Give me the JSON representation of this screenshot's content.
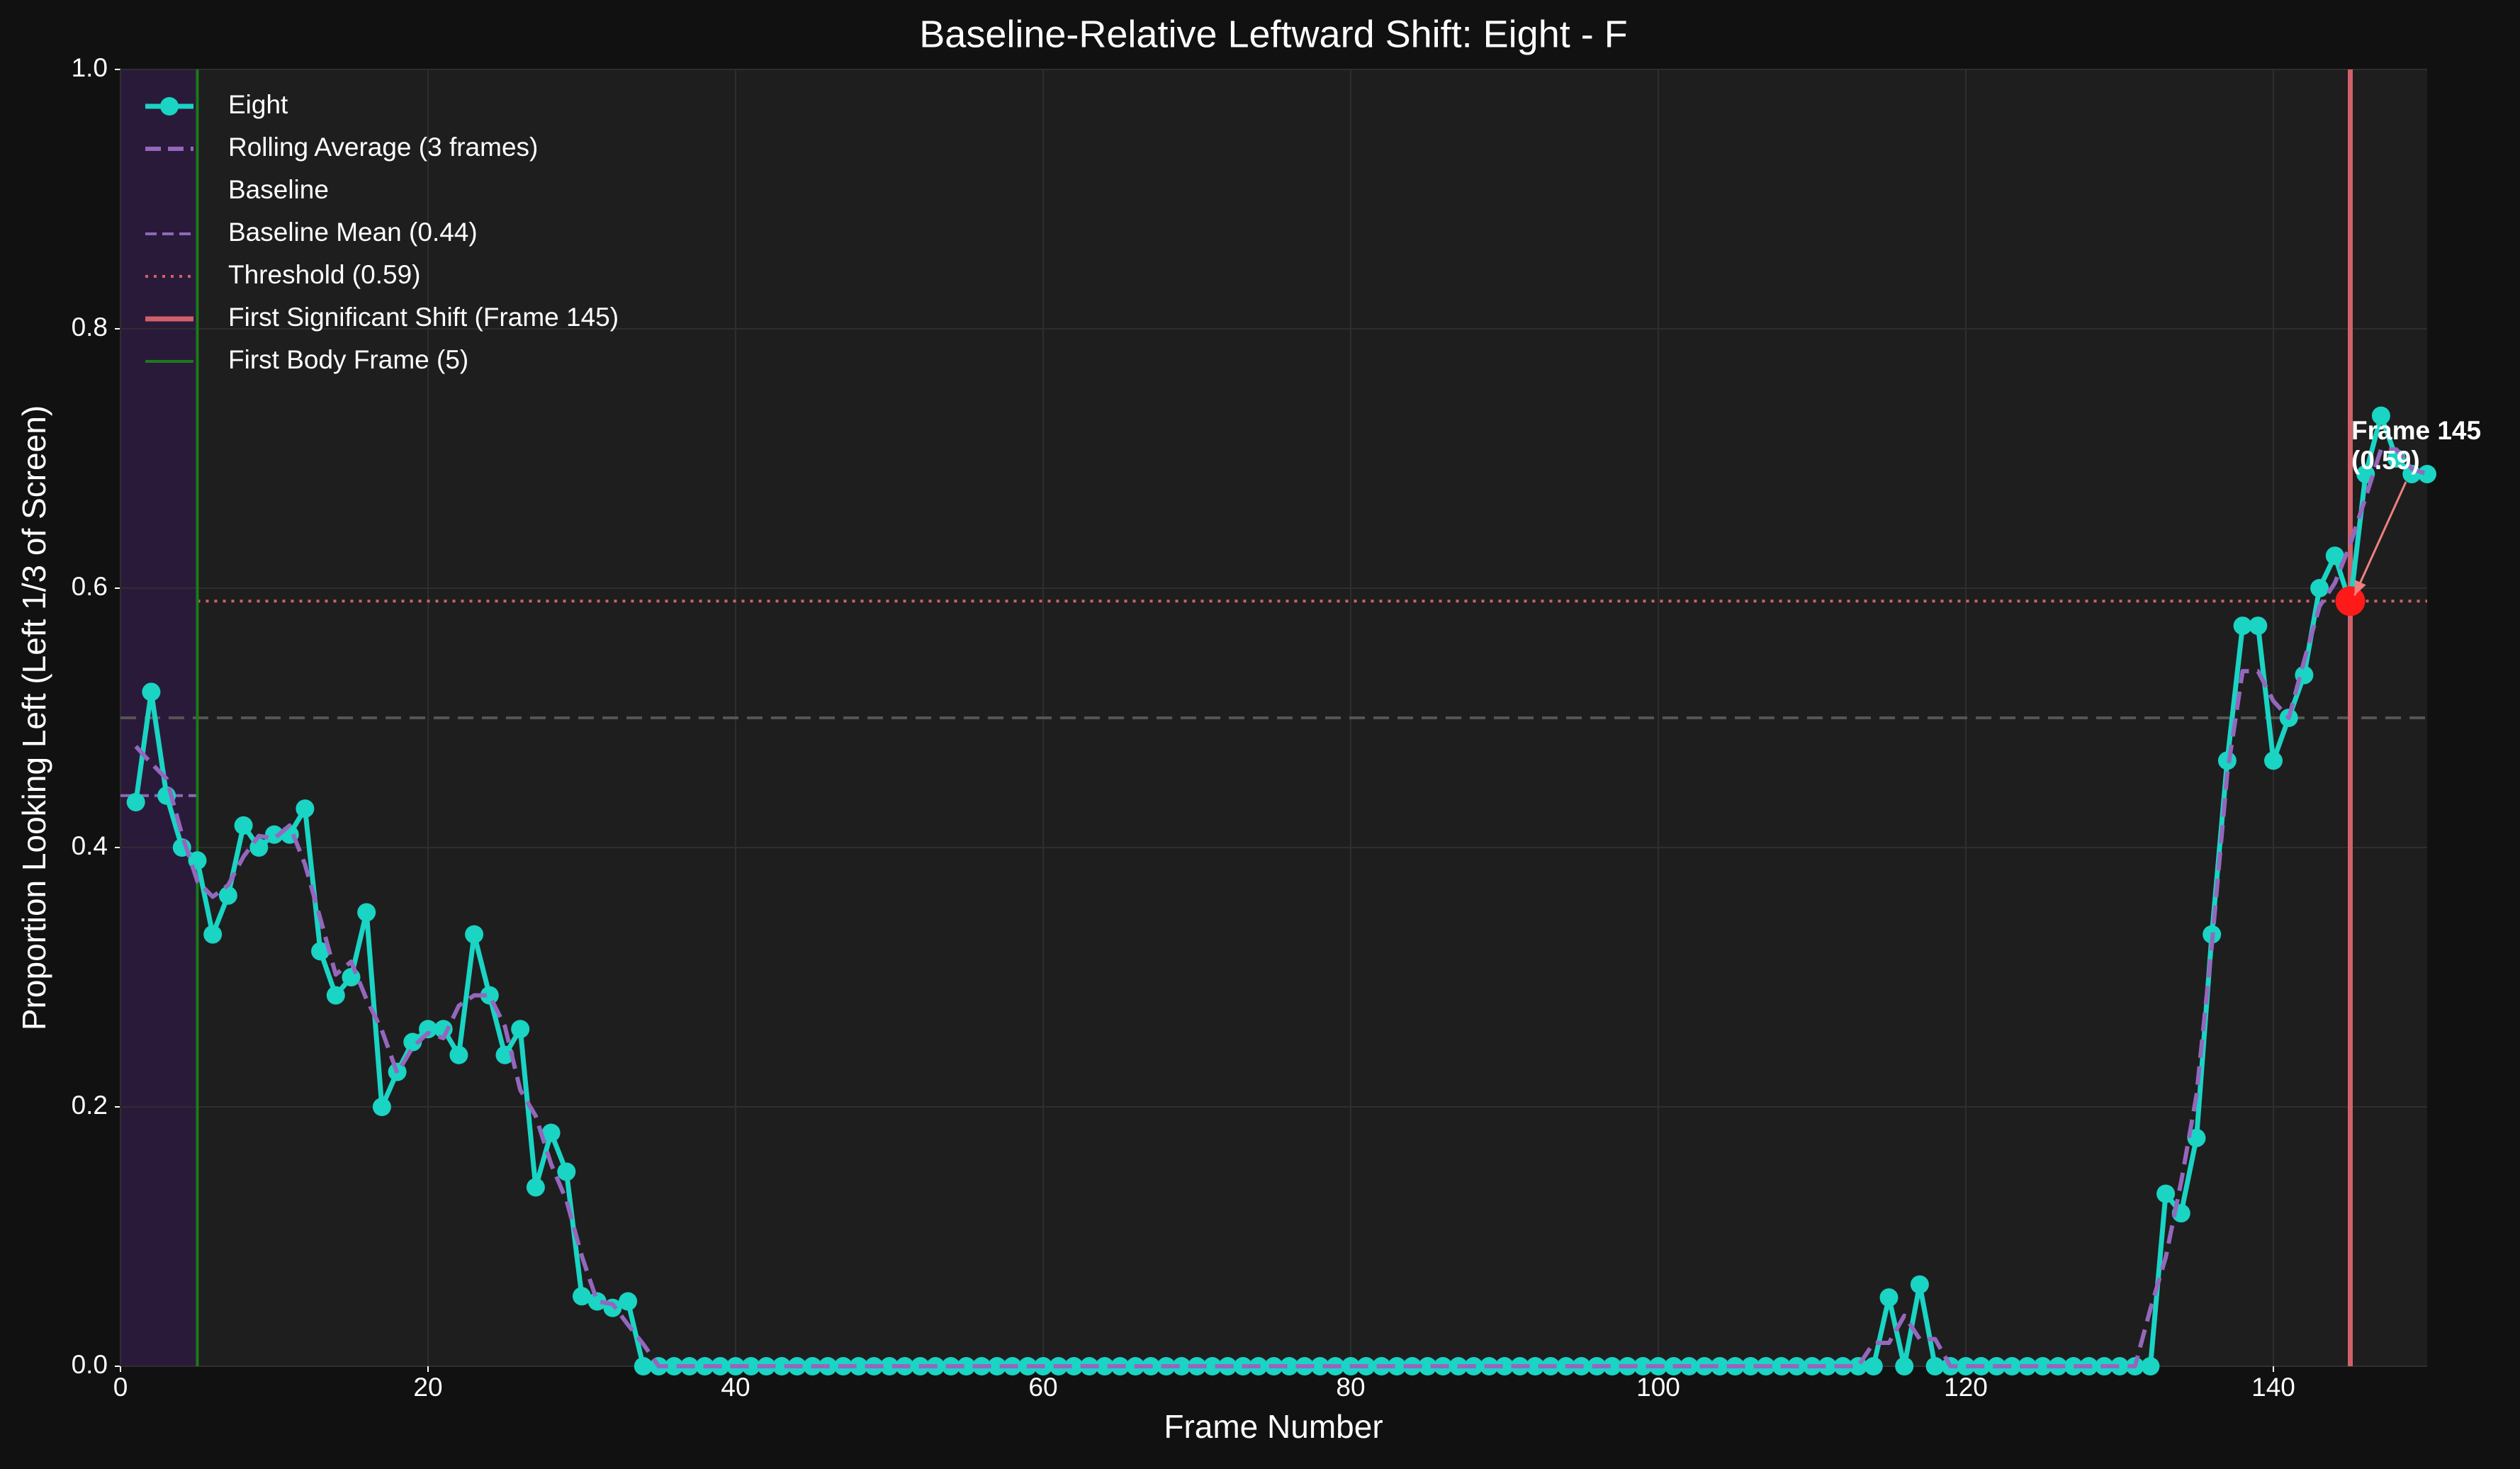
{
  "chart_data": {
    "type": "line",
    "title": "Baseline-Relative Leftward Shift: Eight - F",
    "xlabel": "Frame Number",
    "ylabel": "Proportion Looking Left (Left 1/3 of Screen)",
    "xlim": [
      0,
      150
    ],
    "ylim": [
      0,
      1
    ],
    "xticks": [
      0,
      20,
      40,
      60,
      80,
      100,
      120,
      140
    ],
    "yticks": [
      {
        "value": 0,
        "label": "0.0"
      },
      {
        "value": 0.2,
        "label": "0.2"
      },
      {
        "value": 0.4,
        "label": "0.4"
      },
      {
        "value": 0.6,
        "label": "0.6"
      },
      {
        "value": 0.8,
        "label": "0.8"
      },
      {
        "value": 1,
        "label": "1.0"
      }
    ],
    "grid": true,
    "legend": "upper left",
    "x": [
      1,
      2,
      3,
      4,
      5,
      6,
      7,
      8,
      9,
      10,
      11,
      12,
      13,
      14,
      15,
      16,
      17,
      18,
      19,
      20,
      21,
      22,
      23,
      24,
      25,
      26,
      27,
      28,
      29,
      30,
      31,
      32,
      33,
      34,
      35,
      36,
      37,
      38,
      39,
      40,
      41,
      42,
      43,
      44,
      45,
      46,
      47,
      48,
      49,
      50,
      51,
      52,
      53,
      54,
      55,
      56,
      57,
      58,
      59,
      60,
      61,
      62,
      63,
      64,
      65,
      66,
      67,
      68,
      69,
      70,
      71,
      72,
      73,
      74,
      75,
      76,
      77,
      78,
      79,
      80,
      81,
      82,
      83,
      84,
      85,
      86,
      87,
      88,
      89,
      90,
      91,
      92,
      93,
      94,
      95,
      96,
      97,
      98,
      99,
      100,
      101,
      102,
      103,
      104,
      105,
      106,
      107,
      108,
      109,
      110,
      111,
      112,
      113,
      114,
      115,
      116,
      117,
      118,
      119,
      120,
      121,
      122,
      123,
      124,
      125,
      126,
      127,
      128,
      129,
      130,
      131,
      132,
      133,
      134,
      135,
      136,
      137,
      138,
      139,
      140,
      141,
      142,
      143,
      144,
      145,
      146,
      147,
      148,
      149,
      150
    ],
    "series": [
      {
        "name": "Eight",
        "color": "#1ad4c4",
        "style": "solid",
        "marker": true,
        "values": [
          0.435,
          0.52,
          0.44,
          0.4,
          0.39,
          0.333,
          0.363,
          0.417,
          0.4,
          0.41,
          0.41,
          0.43,
          0.32,
          0.286,
          0.3,
          0.35,
          0.2,
          0.227,
          0.25,
          0.26,
          0.26,
          0.24,
          0.333,
          0.286,
          0.24,
          0.26,
          0.138,
          0.18,
          0.15,
          0.054,
          0.05,
          0.045,
          0.05,
          0,
          0,
          0,
          0,
          0,
          0,
          0,
          0,
          0,
          0,
          0,
          0,
          0,
          0,
          0,
          0,
          0,
          0,
          0,
          0,
          0,
          0,
          0,
          0,
          0,
          0,
          0,
          0,
          0,
          0,
          0,
          0,
          0,
          0,
          0,
          0,
          0,
          0,
          0,
          0,
          0,
          0,
          0,
          0,
          0,
          0,
          0,
          0,
          0,
          0,
          0,
          0,
          0,
          0,
          0,
          0,
          0,
          0,
          0,
          0,
          0,
          0,
          0,
          0,
          0,
          0,
          0,
          0,
          0,
          0,
          0,
          0,
          0,
          0,
          0,
          0,
          0,
          0,
          0,
          0,
          0,
          0.053,
          0,
          0.063,
          0,
          0,
          0,
          0,
          0,
          0,
          0,
          0,
          0,
          0,
          0,
          0,
          0,
          0,
          0,
          0.133,
          0.118,
          0.176,
          0.333,
          0.467,
          0.571,
          0.571,
          0.467,
          0.5,
          0.533,
          0.6,
          0.625,
          0.588,
          0.688,
          0.733,
          0.7,
          0.688,
          0.688
        ]
      },
      {
        "name": "Rolling Average (3 frames)",
        "color": "#9467bd",
        "style": "dashed",
        "marker": false,
        "values": [
          0.478,
          0.465,
          0.453,
          0.41,
          0.374,
          0.362,
          0.371,
          0.393,
          0.409,
          0.407,
          0.417,
          0.387,
          0.345,
          0.302,
          0.312,
          0.283,
          0.259,
          0.226,
          0.246,
          0.257,
          0.253,
          0.278,
          0.286,
          0.286,
          0.262,
          0.213,
          0.193,
          0.156,
          0.128,
          0.085,
          0.05,
          0.048,
          0.032,
          0.017,
          0,
          0,
          0,
          0,
          0,
          0,
          0,
          0,
          0,
          0,
          0,
          0,
          0,
          0,
          0,
          0,
          0,
          0,
          0,
          0,
          0,
          0,
          0,
          0,
          0,
          0,
          0,
          0,
          0,
          0,
          0,
          0,
          0,
          0,
          0,
          0,
          0,
          0,
          0,
          0,
          0,
          0,
          0,
          0,
          0,
          0,
          0,
          0,
          0,
          0,
          0,
          0,
          0,
          0,
          0,
          0,
          0,
          0,
          0,
          0,
          0,
          0,
          0,
          0,
          0,
          0,
          0,
          0,
          0,
          0,
          0,
          0,
          0,
          0,
          0,
          0,
          0,
          0,
          0,
          0.018,
          0.018,
          0.039,
          0.021,
          0.021,
          0,
          0,
          0,
          0,
          0,
          0,
          0,
          0,
          0,
          0,
          0,
          0,
          0,
          0.044,
          0.084,
          0.142,
          0.209,
          0.325,
          0.457,
          0.536,
          0.536,
          0.513,
          0.5,
          0.544,
          0.586,
          0.604,
          0.634,
          0.67,
          0.707,
          0.707,
          0.692,
          0.688
        ]
      }
    ],
    "baseline": {
      "name": "Baseline",
      "range": [
        0,
        5
      ],
      "color": "#2a1a3a"
    },
    "baseline_mean": {
      "name": "Baseline Mean (0.44)",
      "value": 0.44,
      "color": "#8c6ab8"
    },
    "threshold": {
      "name": "Threshold (0.59)",
      "value": 0.59,
      "from": 5,
      "color": "#d0606a"
    },
    "first_shift": {
      "name": "First Significant Shift (Frame 145)",
      "frame": 145,
      "value": 0.59,
      "color": "#d0606a",
      "point_color": "#ff1a1a"
    },
    "first_body": {
      "name": "First Body Frame (5)",
      "frame": 5,
      "color": "#1a7a1a"
    },
    "reference_y": 0.5,
    "annotation": [
      "Frame 145",
      "(0.59)"
    ]
  }
}
